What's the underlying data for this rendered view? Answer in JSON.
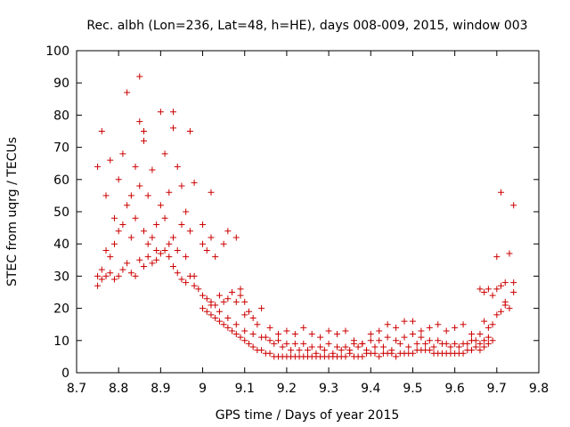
{
  "chart_data": {
    "type": "scatter",
    "title": "Rec. albh (Lon=236, Lat=48, h=HE), days 008-009, 2015, window 003",
    "xlabel": "GPS time / Days of year 2015",
    "ylabel": "STEC from uqrg / TECUs",
    "xlim": [
      8.7,
      9.8
    ],
    "ylim": [
      0,
      100
    ],
    "xticks": [
      "8.7",
      "8.8",
      "8.9",
      "9",
      "9.1",
      "9.2",
      "9.3",
      "9.4",
      "9.5",
      "9.6",
      "9.7",
      "9.8"
    ],
    "yticks": [
      "0",
      "10",
      "20",
      "30",
      "40",
      "50",
      "60",
      "70",
      "80",
      "90",
      "100"
    ],
    "grid": false,
    "legend": "none",
    "marker": "plus",
    "color": "#cc0000",
    "series": [
      {
        "points": [
          [
            8.75,
            64
          ],
          [
            8.76,
            75
          ],
          [
            8.77,
            55
          ],
          [
            8.78,
            66
          ],
          [
            8.79,
            48
          ],
          [
            8.8,
            60
          ],
          [
            8.81,
            68
          ],
          [
            8.82,
            87
          ],
          [
            8.83,
            55
          ],
          [
            8.84,
            64
          ],
          [
            8.85,
            92
          ],
          [
            8.85,
            78
          ],
          [
            8.86,
            75
          ],
          [
            8.86,
            72
          ],
          [
            8.87,
            55
          ],
          [
            8.88,
            63
          ],
          [
            8.89,
            46
          ],
          [
            8.9,
            81
          ],
          [
            8.91,
            68
          ],
          [
            8.92,
            56
          ],
          [
            8.93,
            81
          ],
          [
            8.93,
            76
          ],
          [
            8.94,
            64
          ],
          [
            8.95,
            58
          ],
          [
            8.96,
            50
          ],
          [
            8.97,
            75
          ],
          [
            8.98,
            59
          ],
          [
            9.0,
            46
          ],
          [
            9.02,
            56
          ],
          [
            8.75,
            30
          ],
          [
            8.76,
            32
          ],
          [
            8.77,
            38
          ],
          [
            8.78,
            36
          ],
          [
            8.79,
            40
          ],
          [
            8.8,
            44
          ],
          [
            8.81,
            46
          ],
          [
            8.82,
            52
          ],
          [
            8.83,
            42
          ],
          [
            8.84,
            48
          ],
          [
            8.85,
            58
          ],
          [
            8.86,
            44
          ],
          [
            8.87,
            40
          ],
          [
            8.88,
            42
          ],
          [
            8.89,
            38
          ],
          [
            8.9,
            52
          ],
          [
            8.91,
            48
          ],
          [
            8.92,
            40
          ],
          [
            8.93,
            42
          ],
          [
            8.94,
            38
          ],
          [
            8.95,
            46
          ],
          [
            8.96,
            36
          ],
          [
            8.97,
            44
          ],
          [
            8.98,
            30
          ],
          [
            9.0,
            40
          ],
          [
            9.01,
            38
          ],
          [
            9.02,
            42
          ],
          [
            9.03,
            36
          ],
          [
            9.05,
            40
          ],
          [
            9.06,
            44
          ],
          [
            9.08,
            42
          ],
          [
            8.75,
            27
          ],
          [
            8.76,
            29
          ],
          [
            8.77,
            30
          ],
          [
            8.78,
            31
          ],
          [
            8.79,
            29
          ],
          [
            8.8,
            30
          ],
          [
            8.81,
            32
          ],
          [
            8.82,
            34
          ],
          [
            8.83,
            31
          ],
          [
            8.84,
            30
          ],
          [
            8.85,
            35
          ],
          [
            8.86,
            33
          ],
          [
            8.87,
            36
          ],
          [
            8.88,
            34
          ],
          [
            8.89,
            35
          ],
          [
            8.9,
            37
          ],
          [
            8.91,
            38
          ],
          [
            8.92,
            36
          ],
          [
            8.93,
            33
          ],
          [
            8.94,
            31
          ],
          [
            8.95,
            29
          ],
          [
            8.96,
            28
          ],
          [
            8.97,
            30
          ],
          [
            8.98,
            27
          ],
          [
            8.99,
            26
          ],
          [
            9.0,
            24
          ],
          [
            9.01,
            23
          ],
          [
            9.02,
            22
          ],
          [
            9.03,
            21
          ],
          [
            9.04,
            24
          ],
          [
            9.05,
            22
          ],
          [
            9.06,
            23
          ],
          [
            9.07,
            25
          ],
          [
            9.08,
            22
          ],
          [
            9.09,
            26
          ],
          [
            9.0,
            20
          ],
          [
            9.01,
            19
          ],
          [
            9.02,
            18
          ],
          [
            9.03,
            17
          ],
          [
            9.04,
            16
          ],
          [
            9.05,
            15
          ],
          [
            9.06,
            14
          ],
          [
            9.07,
            13
          ],
          [
            9.08,
            12
          ],
          [
            9.09,
            11
          ],
          [
            9.1,
            10
          ],
          [
            9.11,
            9
          ],
          [
            9.12,
            8
          ],
          [
            9.13,
            7
          ],
          [
            9.14,
            7
          ],
          [
            9.15,
            6
          ],
          [
            9.16,
            6
          ],
          [
            9.17,
            5
          ],
          [
            9.18,
            5
          ],
          [
            9.19,
            5
          ],
          [
            9.2,
            5
          ],
          [
            9.21,
            5
          ],
          [
            9.22,
            5
          ],
          [
            9.23,
            5
          ],
          [
            9.24,
            5
          ],
          [
            9.25,
            5
          ],
          [
            9.26,
            5
          ],
          [
            9.27,
            5
          ],
          [
            9.28,
            5
          ],
          [
            9.29,
            5
          ],
          [
            9.3,
            5
          ],
          [
            9.31,
            5
          ],
          [
            9.32,
            5
          ],
          [
            9.33,
            5
          ],
          [
            9.34,
            5
          ],
          [
            9.35,
            6
          ],
          [
            9.36,
            5
          ],
          [
            9.37,
            5
          ],
          [
            9.38,
            5
          ],
          [
            9.39,
            6
          ],
          [
            9.4,
            6
          ],
          [
            9.41,
            6
          ],
          [
            9.42,
            5
          ],
          [
            9.43,
            6
          ],
          [
            9.44,
            6
          ],
          [
            9.45,
            6
          ],
          [
            9.46,
            5
          ],
          [
            9.47,
            6
          ],
          [
            9.48,
            6
          ],
          [
            9.49,
            6
          ],
          [
            9.5,
            6
          ],
          [
            9.51,
            7
          ],
          [
            9.52,
            7
          ],
          [
            9.53,
            7
          ],
          [
            9.54,
            7
          ],
          [
            9.55,
            6
          ],
          [
            9.56,
            6
          ],
          [
            9.57,
            6
          ],
          [
            9.58,
            6
          ],
          [
            9.59,
            6
          ],
          [
            9.6,
            6
          ],
          [
            9.61,
            6
          ],
          [
            9.62,
            6
          ],
          [
            9.63,
            7
          ],
          [
            9.64,
            7
          ],
          [
            9.65,
            8
          ],
          [
            9.02,
            21
          ],
          [
            9.04,
            19
          ],
          [
            9.06,
            17
          ],
          [
            9.08,
            15
          ],
          [
            9.1,
            13
          ],
          [
            9.12,
            12
          ],
          [
            9.14,
            11
          ],
          [
            9.16,
            10
          ],
          [
            9.18,
            10
          ],
          [
            9.2,
            9
          ],
          [
            9.22,
            9
          ],
          [
            9.24,
            9
          ],
          [
            9.26,
            8
          ],
          [
            9.28,
            8
          ],
          [
            9.3,
            9
          ],
          [
            9.32,
            8
          ],
          [
            9.34,
            8
          ],
          [
            9.36,
            9
          ],
          [
            9.38,
            9
          ],
          [
            9.4,
            10
          ],
          [
            9.42,
            10
          ],
          [
            9.44,
            11
          ],
          [
            9.46,
            10
          ],
          [
            9.48,
            11
          ],
          [
            9.5,
            12
          ],
          [
            9.52,
            11
          ],
          [
            9.54,
            10
          ],
          [
            9.56,
            10
          ],
          [
            9.58,
            9
          ],
          [
            9.6,
            9
          ],
          [
            9.62,
            9
          ],
          [
            9.64,
            10
          ],
          [
            9.1,
            18
          ],
          [
            9.12,
            17
          ],
          [
            9.14,
            20
          ],
          [
            9.16,
            14
          ],
          [
            9.18,
            12
          ],
          [
            9.2,
            13
          ],
          [
            9.22,
            12
          ],
          [
            9.24,
            14
          ],
          [
            9.26,
            12
          ],
          [
            9.28,
            11
          ],
          [
            9.3,
            13
          ],
          [
            9.32,
            12
          ],
          [
            9.34,
            13
          ],
          [
            9.36,
            10
          ],
          [
            9.38,
            9
          ],
          [
            9.4,
            12
          ],
          [
            9.42,
            13
          ],
          [
            9.44,
            15
          ],
          [
            9.46,
            14
          ],
          [
            9.48,
            16
          ],
          [
            9.5,
            16
          ],
          [
            9.52,
            13
          ],
          [
            9.54,
            14
          ],
          [
            9.56,
            15
          ],
          [
            9.58,
            13
          ],
          [
            9.6,
            14
          ],
          [
            9.62,
            15
          ],
          [
            9.64,
            12
          ],
          [
            9.09,
            24
          ],
          [
            9.1,
            22
          ],
          [
            9.11,
            19
          ],
          [
            9.13,
            15
          ],
          [
            9.15,
            11
          ],
          [
            9.17,
            9
          ],
          [
            9.19,
            8
          ],
          [
            9.21,
            7
          ],
          [
            9.23,
            7
          ],
          [
            9.25,
            7
          ],
          [
            9.27,
            6
          ],
          [
            9.29,
            7
          ],
          [
            9.31,
            6
          ],
          [
            9.33,
            7
          ],
          [
            9.35,
            7
          ],
          [
            9.37,
            8
          ],
          [
            9.39,
            7
          ],
          [
            9.41,
            8
          ],
          [
            9.43,
            8
          ],
          [
            9.45,
            7
          ],
          [
            9.47,
            9
          ],
          [
            9.49,
            8
          ],
          [
            9.51,
            9
          ],
          [
            9.53,
            9
          ],
          [
            9.55,
            8
          ],
          [
            9.57,
            9
          ],
          [
            9.59,
            8
          ],
          [
            9.61,
            8
          ],
          [
            9.63,
            9
          ],
          [
            9.65,
            10
          ],
          [
            9.66,
            12
          ],
          [
            9.67,
            16
          ],
          [
            9.68,
            14
          ],
          [
            9.66,
            26
          ],
          [
            9.67,
            25
          ],
          [
            9.68,
            26
          ],
          [
            9.69,
            24
          ],
          [
            9.7,
            26
          ],
          [
            9.7,
            36
          ],
          [
            9.71,
            56
          ],
          [
            9.71,
            27
          ],
          [
            9.72,
            28
          ],
          [
            9.72,
            22
          ],
          [
            9.73,
            37
          ],
          [
            9.73,
            20
          ],
          [
            9.74,
            52
          ],
          [
            9.74,
            28
          ],
          [
            9.74,
            25
          ],
          [
            9.7,
            18
          ],
          [
            9.71,
            19
          ],
          [
            9.72,
            21
          ],
          [
            9.69,
            15
          ],
          [
            9.68,
            11
          ],
          [
            9.67,
            10
          ],
          [
            9.66,
            9
          ],
          [
            9.66,
            7
          ],
          [
            9.67,
            8
          ],
          [
            9.68,
            9
          ],
          [
            9.69,
            10
          ]
        ]
      }
    ]
  }
}
